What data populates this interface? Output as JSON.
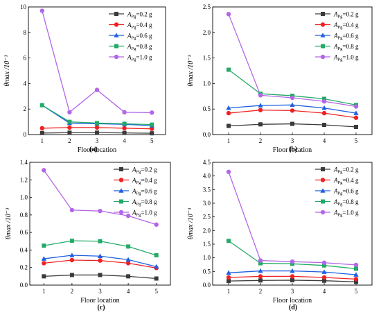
{
  "chart_data": [
    {
      "type": "line",
      "caption": "(a)",
      "x": [
        1,
        2,
        3,
        4,
        5
      ],
      "xlabel": "Floor location",
      "ylabel": "θmax /10⁻³",
      "ylim": [
        0,
        10
      ],
      "yticks": [
        "0",
        "2",
        "4",
        "6",
        "8",
        "10"
      ],
      "xticks": [
        "1",
        "2",
        "3",
        "4",
        "5"
      ],
      "legend_position": "top-right",
      "series": [
        {
          "name": "APg=0.2 g",
          "color": "#3a3a3a",
          "marker": "square",
          "values": [
            0.12,
            0.15,
            0.15,
            0.13,
            0.1
          ]
        },
        {
          "name": "APg=0.4 g",
          "color": "#ee2222",
          "marker": "circle",
          "values": [
            0.5,
            0.55,
            0.55,
            0.5,
            0.45
          ]
        },
        {
          "name": "APg=0.6 g",
          "color": "#1f5fe0",
          "marker": "triangle",
          "values": [
            2.3,
            0.9,
            0.85,
            0.8,
            0.7
          ]
        },
        {
          "name": "APg=0.8 g",
          "color": "#22aa66",
          "marker": "square",
          "values": [
            2.3,
            1.0,
            0.9,
            0.85,
            0.78
          ]
        },
        {
          "name": "APg=1.0 g",
          "color": "#b366e8",
          "marker": "circle",
          "values": [
            9.7,
            1.75,
            3.5,
            1.75,
            1.72
          ]
        }
      ]
    },
    {
      "type": "line",
      "caption": "(b)",
      "x": [
        1,
        2,
        3,
        4,
        5
      ],
      "xlabel": "Floor location",
      "ylabel": "θmax /10⁻³",
      "ylim": [
        0,
        2.5
      ],
      "yticks": [
        "0.0",
        "0.5",
        "1.0",
        "1.5",
        "2.0",
        "2.5"
      ],
      "xticks": [
        "1",
        "2",
        "3",
        "4",
        "5"
      ],
      "legend_position": "top-right",
      "series": [
        {
          "name": "APg=0.2 g",
          "color": "#3a3a3a",
          "marker": "square",
          "values": [
            0.17,
            0.2,
            0.21,
            0.19,
            0.15
          ]
        },
        {
          "name": "APg=0.4 g",
          "color": "#ee2222",
          "marker": "circle",
          "values": [
            0.42,
            0.48,
            0.47,
            0.42,
            0.33
          ]
        },
        {
          "name": "APg=0.6 g",
          "color": "#1f5fe0",
          "marker": "triangle",
          "values": [
            0.52,
            0.57,
            0.58,
            0.52,
            0.42
          ]
        },
        {
          "name": "APg=0.8 g",
          "color": "#22aa66",
          "marker": "square",
          "values": [
            1.27,
            0.8,
            0.76,
            0.7,
            0.58
          ]
        },
        {
          "name": "APg=1.0 g",
          "color": "#b366e8",
          "marker": "circle",
          "values": [
            2.36,
            0.77,
            0.72,
            0.65,
            0.55
          ]
        }
      ]
    },
    {
      "type": "line",
      "caption": "(c)",
      "x": [
        1,
        2,
        3,
        4,
        5
      ],
      "xlabel": "Floor location",
      "ylabel": "θmax /10⁻³",
      "ylim": [
        0,
        1.4
      ],
      "yticks": [
        "0.0",
        "0.2",
        "0.4",
        "0.6",
        "0.8",
        "1.0",
        "1.2",
        "1.4"
      ],
      "xticks": [
        "1",
        "2",
        "3",
        "4",
        "5"
      ],
      "legend_position": "top-right",
      "series": [
        {
          "name": "APg=0.2 g",
          "color": "#3a3a3a",
          "marker": "square",
          "values": [
            0.1,
            0.115,
            0.115,
            0.1,
            0.075
          ]
        },
        {
          "name": "APg=0.4 g",
          "color": "#ee2222",
          "marker": "circle",
          "values": [
            0.25,
            0.285,
            0.28,
            0.25,
            0.195
          ]
        },
        {
          "name": "APg=0.6 g",
          "color": "#1f5fe0",
          "marker": "triangle",
          "values": [
            0.3,
            0.34,
            0.33,
            0.29,
            0.21
          ]
        },
        {
          "name": "APg=0.8 g",
          "color": "#22aa66",
          "marker": "square",
          "values": [
            0.45,
            0.505,
            0.5,
            0.44,
            0.34
          ]
        },
        {
          "name": "APg=1.0 g",
          "color": "#b366e8",
          "marker": "circle",
          "values": [
            1.31,
            0.855,
            0.845,
            0.79,
            0.69
          ]
        }
      ]
    },
    {
      "type": "line",
      "caption": "(d)",
      "x": [
        1,
        2,
        3,
        4,
        5
      ],
      "xlabel": "Floor location",
      "ylabel": "θmax /10⁻³",
      "ylim": [
        0,
        4.5
      ],
      "yticks": [
        "0.0",
        "0.5",
        "1.0",
        "1.5",
        "2.0",
        "2.5",
        "3.0",
        "3.5",
        "4.0",
        "4.5"
      ],
      "xticks": [
        "1",
        "2",
        "3",
        "4",
        "5"
      ],
      "legend_position": "top-right",
      "series": [
        {
          "name": "APg=0.2 g",
          "color": "#3a3a3a",
          "marker": "square",
          "values": [
            0.15,
            0.17,
            0.18,
            0.16,
            0.12
          ]
        },
        {
          "name": "APg=0.4 g",
          "color": "#ee2222",
          "marker": "circle",
          "values": [
            0.28,
            0.32,
            0.32,
            0.28,
            0.22
          ]
        },
        {
          "name": "APg=0.6 g",
          "color": "#1f5fe0",
          "marker": "triangle",
          "values": [
            0.45,
            0.52,
            0.52,
            0.48,
            0.38
          ]
        },
        {
          "name": "APg=0.8 g",
          "color": "#22aa66",
          "marker": "square",
          "values": [
            1.62,
            0.8,
            0.78,
            0.72,
            0.6
          ]
        },
        {
          "name": "APg=1.0 g",
          "color": "#b366e8",
          "marker": "circle",
          "values": [
            4.15,
            0.9,
            0.86,
            0.82,
            0.74
          ]
        }
      ]
    }
  ]
}
